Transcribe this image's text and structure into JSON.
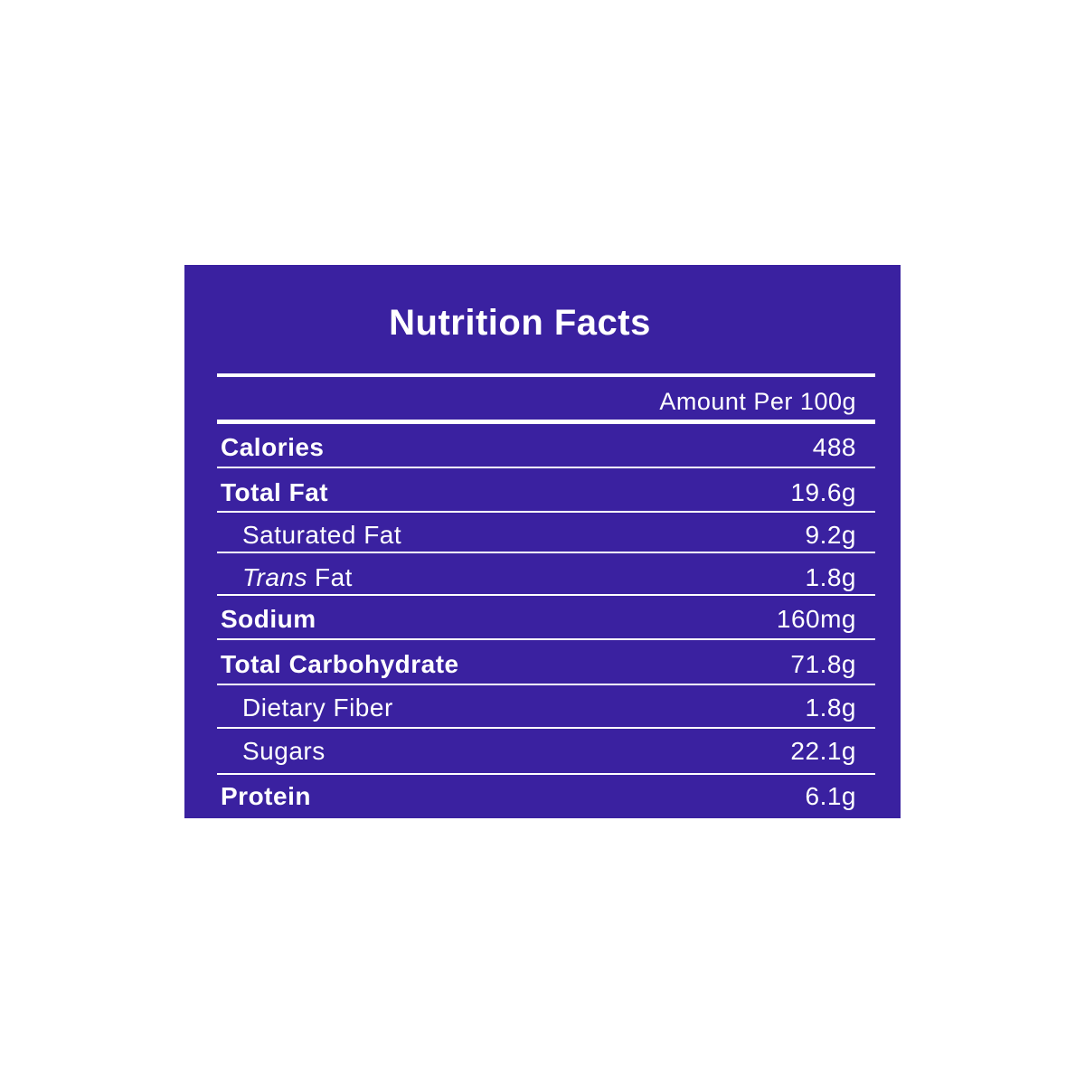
{
  "header": {
    "title": "Nutrition Facts",
    "serving": "Amount Per 100g"
  },
  "table": {
    "rows": [
      {
        "label": "Calories",
        "value": "488",
        "style": "bold"
      },
      {
        "label": "Total Fat",
        "value": "19.6g",
        "style": "bold"
      },
      {
        "label": "Saturated Fat",
        "value": "9.2g",
        "style": "indent"
      },
      {
        "label_italic": "Trans",
        "label": "Fat",
        "value": "1.8g",
        "style": "indent"
      },
      {
        "label": "Sodium",
        "value": "160mg",
        "style": "bold"
      },
      {
        "label": "Total Carbohydrate",
        "value": "71.8g",
        "style": "bold"
      },
      {
        "label": "Dietary Fiber",
        "value": "1.8g",
        "style": "indent"
      },
      {
        "label": "Sugars",
        "value": "22.1g",
        "style": "indent"
      },
      {
        "label": "Protein",
        "value": "6.1g",
        "style": "bold"
      }
    ]
  }
}
